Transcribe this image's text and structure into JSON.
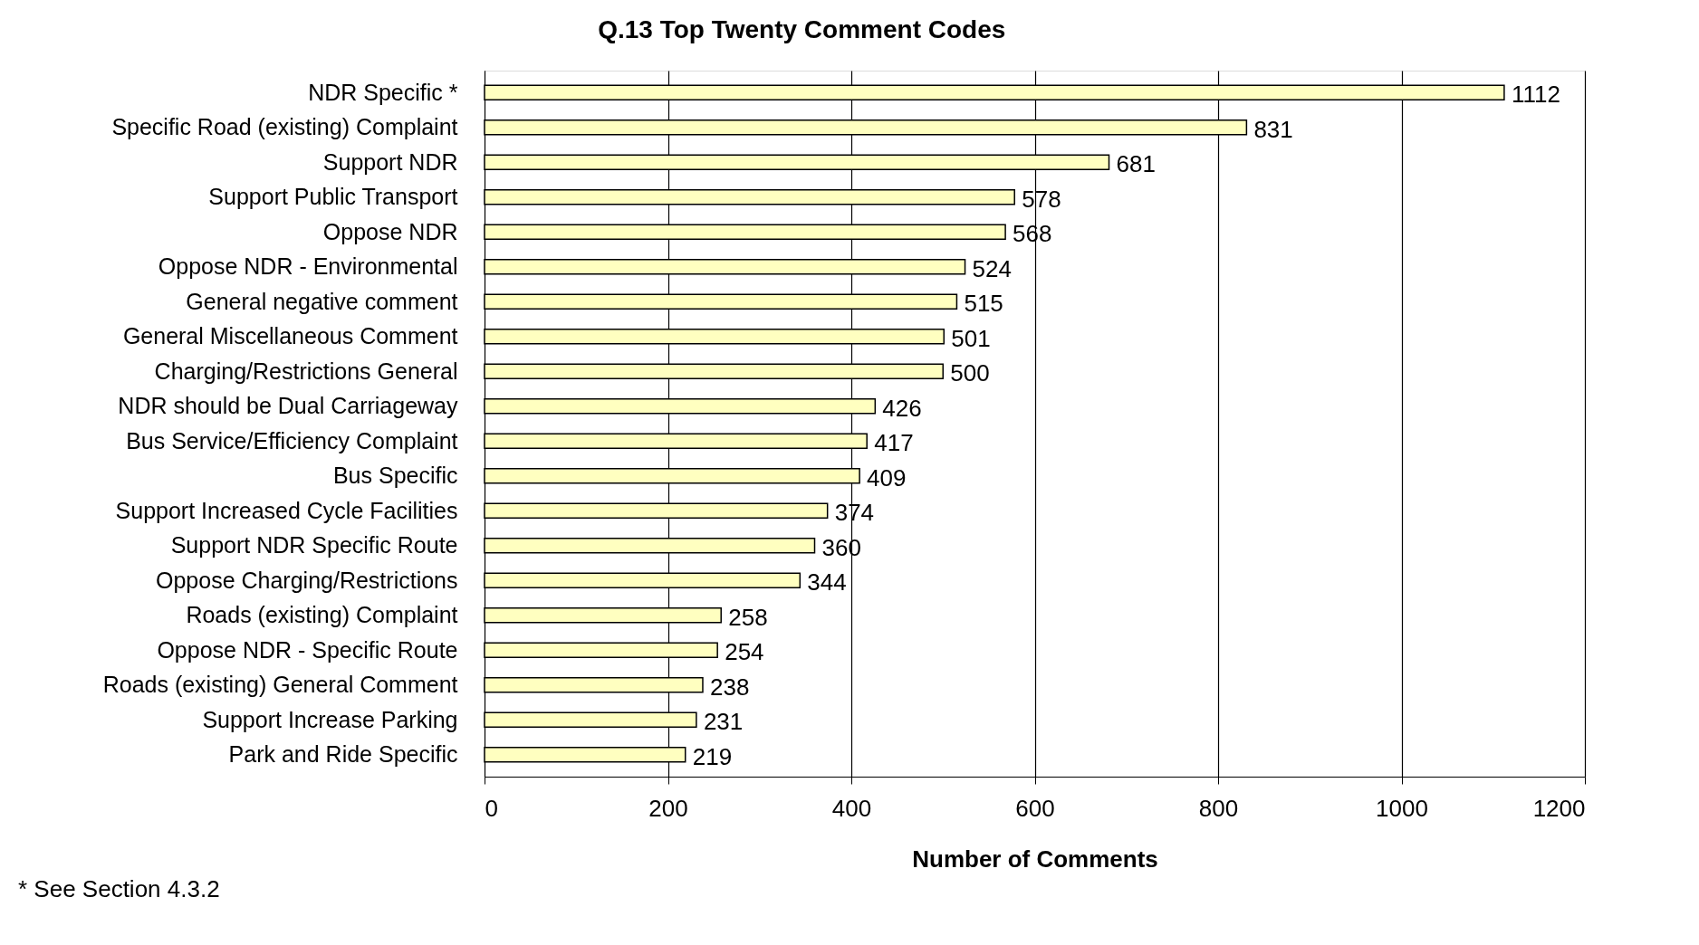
{
  "chart_data": {
    "type": "bar",
    "orientation": "horizontal",
    "title": "Q.13 Top Twenty Comment Codes",
    "xlabel": "Number of Comments",
    "categories": [
      "NDR Specific *",
      "Specific Road (existing)  Complaint",
      "Support NDR",
      "Support Public Transport",
      "Oppose NDR",
      "Oppose NDR - Environmental",
      "General negative comment",
      "General Miscellaneous Comment",
      "Charging/Restrictions General",
      "NDR should be Dual Carriageway",
      "Bus Service/Efficiency Complaint",
      "Bus Specific",
      "Support Increased Cycle Facilities",
      "Support NDR Specific Route",
      "Oppose Charging/Restrictions",
      "Roads (existing) Complaint",
      "Oppose NDR - Specific Route",
      "Roads (existing) General Comment",
      "Support Increase Parking",
      "Park and Ride Specific"
    ],
    "values": [
      1112,
      831,
      681,
      578,
      568,
      524,
      515,
      501,
      500,
      426,
      417,
      409,
      374,
      360,
      344,
      258,
      254,
      238,
      231,
      219
    ],
    "color": "#ffffc0",
    "xlim": [
      0,
      1200
    ],
    "xticks": [
      0,
      200,
      400,
      600,
      800,
      1000,
      1200
    ],
    "grid": "x",
    "data_labels": true,
    "annotations": [
      "* See Section 4.3.2"
    ]
  }
}
